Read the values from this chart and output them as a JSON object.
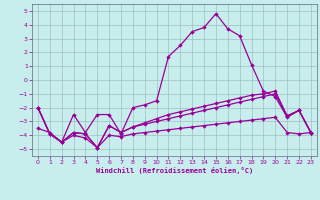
{
  "xlabel": "Windchill (Refroidissement éolien,°C)",
  "xlim_min": -0.5,
  "xlim_max": 23.5,
  "ylim_min": -5.5,
  "ylim_max": 5.5,
  "yticks": [
    -5,
    -4,
    -3,
    -2,
    -1,
    0,
    1,
    2,
    3,
    4,
    5
  ],
  "xticks": [
    0,
    1,
    2,
    3,
    4,
    5,
    6,
    7,
    8,
    9,
    10,
    11,
    12,
    13,
    14,
    15,
    16,
    17,
    18,
    19,
    20,
    21,
    22,
    23
  ],
  "bg_color": "#c8eded",
  "grid_color": "#9ec0c0",
  "line_color": "#990099",
  "spine_color": "#666688",
  "line1_y": [
    -2.0,
    -3.9,
    -4.5,
    -2.5,
    -3.8,
    -2.5,
    -2.5,
    -3.9,
    -2.0,
    -1.8,
    -1.5,
    1.7,
    2.5,
    3.5,
    3.8,
    4.8,
    3.7,
    3.2,
    1.1,
    -0.8,
    -1.2,
    -2.7,
    -2.2,
    -3.8
  ],
  "line2_y": [
    -2.0,
    -3.9,
    -4.5,
    -3.8,
    -3.9,
    -4.9,
    -3.3,
    -3.8,
    -3.4,
    -3.1,
    -2.8,
    -2.5,
    -2.3,
    -2.1,
    -1.9,
    -1.7,
    -1.5,
    -1.3,
    -1.1,
    -1.0,
    -0.8,
    -2.6,
    -2.2,
    -3.8
  ],
  "line3_y": [
    -2.0,
    -3.9,
    -4.5,
    -3.8,
    -3.9,
    -4.9,
    -3.3,
    -3.8,
    -3.4,
    -3.2,
    -3.0,
    -2.8,
    -2.6,
    -2.4,
    -2.2,
    -2.0,
    -1.8,
    -1.6,
    -1.4,
    -1.2,
    -1.0,
    -2.6,
    -2.2,
    -3.8
  ],
  "line4_y": [
    -3.5,
    -3.8,
    -4.5,
    -4.0,
    -4.2,
    -4.9,
    -4.0,
    -4.1,
    -3.9,
    -3.8,
    -3.7,
    -3.6,
    -3.5,
    -3.4,
    -3.3,
    -3.2,
    -3.1,
    -3.0,
    -2.9,
    -2.8,
    -2.7,
    -3.8,
    -3.9,
    -3.8
  ]
}
